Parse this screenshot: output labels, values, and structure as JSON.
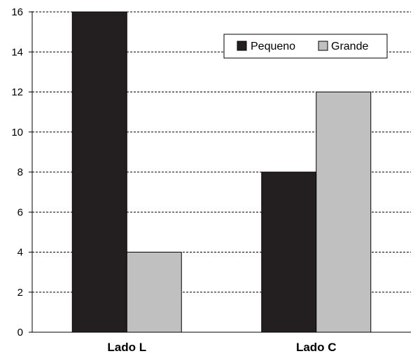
{
  "chart_data": {
    "type": "bar",
    "categories": [
      "Lado L",
      "Lado C"
    ],
    "series": [
      {
        "name": "Pequeno",
        "values": [
          16,
          8
        ],
        "color": "#231f20"
      },
      {
        "name": "Grande",
        "values": [
          4,
          12
        ],
        "color": "#c0c0c0"
      }
    ],
    "ylim": [
      0,
      16
    ],
    "yticks": [
      0,
      2,
      4,
      6,
      8,
      10,
      12,
      14,
      16
    ],
    "grid": true,
    "grid_style": "dashed",
    "legend_position": "top-right"
  }
}
